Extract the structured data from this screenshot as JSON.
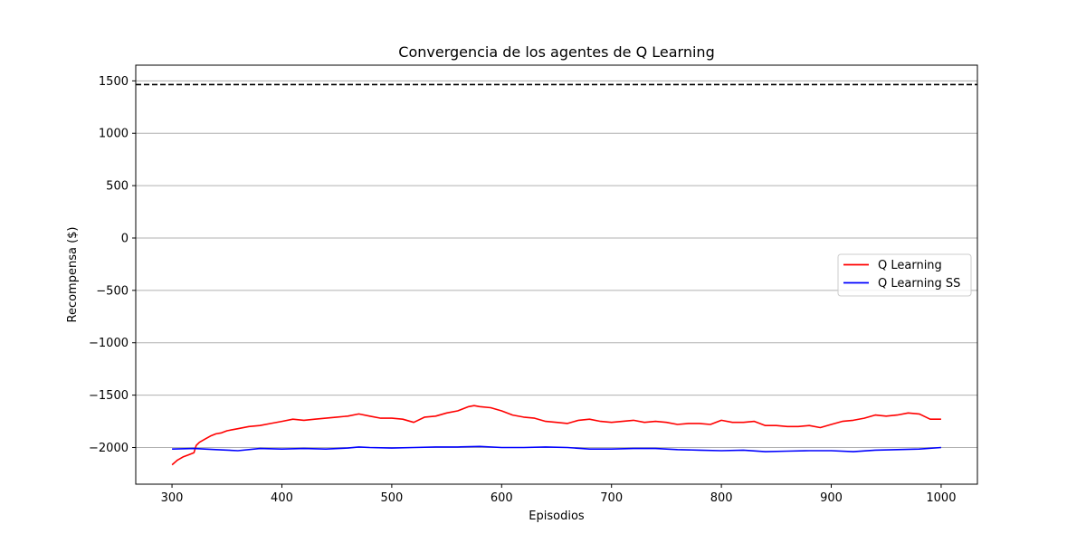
{
  "chart_data": {
    "type": "line",
    "title": "Convergencia de los agentes de Q Learning",
    "xlabel": "Episodios",
    "ylabel": "Recompensa ($)",
    "xlim": [
      267,
      1033
    ],
    "ylim": [
      -2350,
      1650
    ],
    "xticks": [
      300,
      400,
      500,
      600,
      700,
      800,
      900,
      1000
    ],
    "yticks": [
      -2000,
      -1500,
      -1000,
      -500,
      0,
      500,
      1000,
      1500
    ],
    "ytick_labels": [
      "−2000",
      "−1500",
      "−1000",
      "−500",
      "0",
      "500",
      "1000",
      "1500"
    ],
    "grid": "y",
    "legend_position": "center-right",
    "reference_line": {
      "y": 1465,
      "style": "dashed",
      "color": "#000000"
    },
    "series": [
      {
        "name": "Q Learning",
        "color": "#ff0000",
        "x": [
          300,
          305,
          310,
          315,
          320,
          322,
          325,
          330,
          335,
          340,
          345,
          350,
          355,
          360,
          370,
          380,
          390,
          400,
          410,
          420,
          430,
          440,
          450,
          460,
          470,
          480,
          490,
          500,
          510,
          520,
          530,
          540,
          550,
          560,
          570,
          575,
          580,
          590,
          600,
          610,
          620,
          630,
          640,
          650,
          660,
          670,
          680,
          690,
          700,
          710,
          720,
          730,
          740,
          750,
          760,
          770,
          780,
          790,
          800,
          810,
          820,
          830,
          840,
          850,
          860,
          870,
          880,
          890,
          900,
          910,
          920,
          930,
          940,
          950,
          960,
          970,
          980,
          990,
          1000
        ],
        "values": [
          -2165,
          -2120,
          -2090,
          -2070,
          -2050,
          -1980,
          -1950,
          -1920,
          -1890,
          -1870,
          -1860,
          -1840,
          -1830,
          -1820,
          -1800,
          -1790,
          -1770,
          -1750,
          -1730,
          -1740,
          -1730,
          -1720,
          -1710,
          -1700,
          -1680,
          -1700,
          -1720,
          -1720,
          -1730,
          -1760,
          -1710,
          -1700,
          -1670,
          -1650,
          -1610,
          -1600,
          -1610,
          -1620,
          -1650,
          -1690,
          -1710,
          -1720,
          -1750,
          -1760,
          -1770,
          -1740,
          -1730,
          -1750,
          -1760,
          -1750,
          -1740,
          -1760,
          -1750,
          -1760,
          -1780,
          -1770,
          -1770,
          -1780,
          -1740,
          -1760,
          -1760,
          -1750,
          -1790,
          -1790,
          -1800,
          -1800,
          -1790,
          -1810,
          -1780,
          -1750,
          -1740,
          -1720,
          -1690,
          -1700,
          -1690,
          -1670,
          -1680,
          -1730,
          -1730
        ]
      },
      {
        "name": "Q Learning SS",
        "color": "#0000ff",
        "x": [
          300,
          320,
          340,
          360,
          380,
          400,
          420,
          440,
          460,
          470,
          480,
          500,
          520,
          540,
          560,
          580,
          600,
          620,
          640,
          660,
          680,
          700,
          720,
          740,
          760,
          780,
          800,
          820,
          840,
          860,
          880,
          900,
          920,
          940,
          960,
          980,
          1000
        ],
        "values": [
          -2015,
          -2010,
          -2020,
          -2030,
          -2010,
          -2015,
          -2010,
          -2015,
          -2005,
          -1995,
          -2000,
          -2005,
          -2000,
          -1995,
          -1995,
          -1990,
          -2000,
          -2000,
          -1995,
          -2000,
          -2015,
          -2015,
          -2010,
          -2010,
          -2020,
          -2025,
          -2030,
          -2025,
          -2040,
          -2035,
          -2030,
          -2030,
          -2040,
          -2025,
          -2020,
          -2015,
          -2000
        ]
      }
    ]
  }
}
